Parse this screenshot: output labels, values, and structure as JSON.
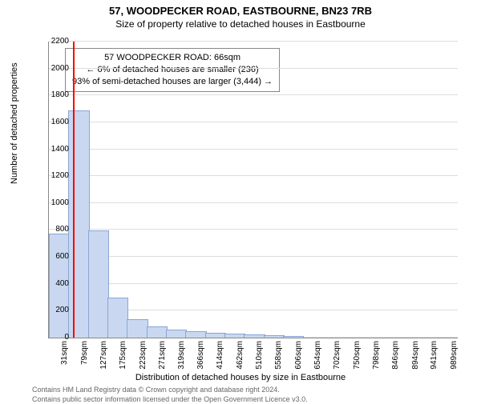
{
  "title_line1": "57, WOODPECKER ROAD, EASTBOURNE, BN23 7RB",
  "title_line2": "Size of property relative to detached houses in Eastbourne",
  "y_axis_label": "Number of detached properties",
  "x_axis_label": "Distribution of detached houses by size in Eastbourne",
  "footer_line1": "Contains HM Land Registry data © Crown copyright and database right 2024.",
  "footer_line2": "Contains public sector information licensed under the Open Government Licence v3.0.",
  "info_box": {
    "line1": "57 WOODPECKER ROAD: 66sqm",
    "line2": "← 6% of detached houses are smaller (236)",
    "line3": "93% of semi-detached houses are larger (3,444) →"
  },
  "chart": {
    "type": "histogram",
    "background_color": "#ffffff",
    "grid_color": "#dddddd",
    "axis_color": "#888888",
    "bar_color": "#c9d8f0",
    "bar_border_color": "#8aa6d6",
    "marker_color": "#ff0000",
    "marker_x": 66,
    "title_fontsize": 13,
    "subtitle_fontsize": 12,
    "label_fontsize": 11,
    "tick_fontsize": 10,
    "info_fontsize": 11,
    "footer_fontsize": 9,
    "footer_color": "#666666",
    "x_min": 7,
    "x_max": 1013,
    "bin_width": 48,
    "y_min": 0,
    "y_max": 2200,
    "y_tick_step": 200,
    "y_ticks": [
      0,
      200,
      400,
      600,
      800,
      1000,
      1200,
      1400,
      1600,
      1800,
      2000,
      2200
    ],
    "x_ticks": [
      31,
      79,
      127,
      175,
      223,
      271,
      319,
      366,
      414,
      462,
      510,
      558,
      606,
      654,
      702,
      750,
      798,
      846,
      894,
      941,
      989
    ],
    "x_tick_suffix": "sqm",
    "bins": [
      {
        "start": 7,
        "count": 770
      },
      {
        "start": 55,
        "count": 1680
      },
      {
        "start": 103,
        "count": 790
      },
      {
        "start": 151,
        "count": 290
      },
      {
        "start": 199,
        "count": 130
      },
      {
        "start": 247,
        "count": 80
      },
      {
        "start": 295,
        "count": 55
      },
      {
        "start": 343,
        "count": 40
      },
      {
        "start": 391,
        "count": 30
      },
      {
        "start": 439,
        "count": 25
      },
      {
        "start": 487,
        "count": 18
      },
      {
        "start": 535,
        "count": 10
      },
      {
        "start": 583,
        "count": 5
      },
      {
        "start": 631,
        "count": 0
      },
      {
        "start": 679,
        "count": 0
      },
      {
        "start": 727,
        "count": 0
      },
      {
        "start": 775,
        "count": 0
      },
      {
        "start": 823,
        "count": 0
      },
      {
        "start": 871,
        "count": 0
      },
      {
        "start": 919,
        "count": 0
      },
      {
        "start": 967,
        "count": 0
      }
    ]
  }
}
